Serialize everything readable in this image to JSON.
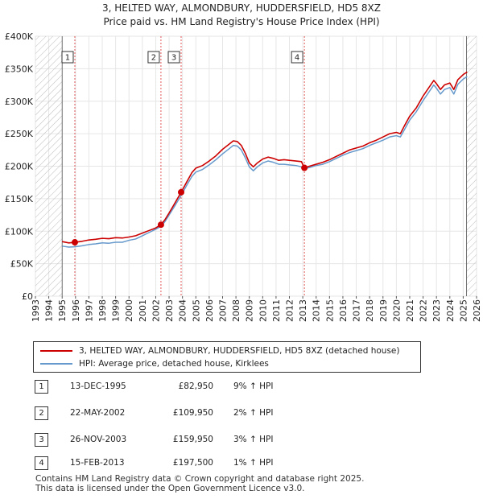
{
  "chart_data": {
    "type": "line",
    "title": "3, HELTED WAY, ALMONDBURY, HUDDERSFIELD, HD5 8XZ",
    "subtitle": "Price paid vs. HM Land Registry's House Price Index (HPI)",
    "xlabel": "",
    "ylabel": "",
    "xlim": [
      1993,
      2026
    ],
    "ylim": [
      0,
      400000
    ],
    "x_ticks": [
      1993,
      1994,
      1995,
      1996,
      1997,
      1998,
      1999,
      2000,
      2001,
      2002,
      2003,
      2004,
      2005,
      2006,
      2007,
      2008,
      2009,
      2010,
      2011,
      2012,
      2013,
      2014,
      2015,
      2016,
      2017,
      2018,
      2019,
      2020,
      2021,
      2022,
      2023,
      2024,
      2025,
      2026
    ],
    "y_ticks": [
      0,
      50000,
      100000,
      150000,
      200000,
      250000,
      300000,
      350000,
      400000
    ],
    "y_tick_labels": [
      "£0",
      "£50K",
      "£100K",
      "£150K",
      "£200K",
      "£250K",
      "£300K",
      "£350K",
      "£400K"
    ],
    "hatched_regions": [
      [
        1993,
        1995.0
      ],
      [
        2025.25,
        2026
      ]
    ],
    "series": [
      {
        "name": "3, HELTED WAY, ALMONDBURY, HUDDERSFIELD, HD5 8XZ (detached house)",
        "color": "#cc0000",
        "points": [
          [
            1995.0,
            84000
          ],
          [
            1995.5,
            82000
          ],
          [
            1995.95,
            82950
          ],
          [
            1996.5,
            84500
          ],
          [
            1997.0,
            86500
          ],
          [
            1997.5,
            87500
          ],
          [
            1998.0,
            89000
          ],
          [
            1998.5,
            88500
          ],
          [
            1999.0,
            90000
          ],
          [
            1999.5,
            89500
          ],
          [
            2000.0,
            91000
          ],
          [
            2000.5,
            93000
          ],
          [
            2001.0,
            97000
          ],
          [
            2001.5,
            101000
          ],
          [
            2002.0,
            105000
          ],
          [
            2002.39,
            109950
          ],
          [
            2002.7,
            118000
          ],
          [
            2003.0,
            128000
          ],
          [
            2003.4,
            142000
          ],
          [
            2003.9,
            159950
          ],
          [
            2004.3,
            175000
          ],
          [
            2004.7,
            190000
          ],
          [
            2005.0,
            197000
          ],
          [
            2005.5,
            201000
          ],
          [
            2006.0,
            208000
          ],
          [
            2006.5,
            216000
          ],
          [
            2007.0,
            226000
          ],
          [
            2007.5,
            234000
          ],
          [
            2007.8,
            239000
          ],
          [
            2008.1,
            238000
          ],
          [
            2008.4,
            232000
          ],
          [
            2008.7,
            220000
          ],
          [
            2009.0,
            205000
          ],
          [
            2009.3,
            199000
          ],
          [
            2009.6,
            205000
          ],
          [
            2010.0,
            211000
          ],
          [
            2010.4,
            214000
          ],
          [
            2010.8,
            212000
          ],
          [
            2011.2,
            209000
          ],
          [
            2011.6,
            210000
          ],
          [
            2012.0,
            209000
          ],
          [
            2012.5,
            208000
          ],
          [
            2012.9,
            207000
          ],
          [
            2013.12,
            197500
          ],
          [
            2013.5,
            200000
          ],
          [
            2014.0,
            203000
          ],
          [
            2014.5,
            206000
          ],
          [
            2015.0,
            210000
          ],
          [
            2015.5,
            215000
          ],
          [
            2016.0,
            220000
          ],
          [
            2016.5,
            225000
          ],
          [
            2017.0,
            228000
          ],
          [
            2017.5,
            231000
          ],
          [
            2018.0,
            236000
          ],
          [
            2018.5,
            240000
          ],
          [
            2019.0,
            245000
          ],
          [
            2019.5,
            250000
          ],
          [
            2020.0,
            252000
          ],
          [
            2020.3,
            250000
          ],
          [
            2020.6,
            262000
          ],
          [
            2021.0,
            277000
          ],
          [
            2021.5,
            290000
          ],
          [
            2022.0,
            308000
          ],
          [
            2022.5,
            323000
          ],
          [
            2022.8,
            332000
          ],
          [
            2023.0,
            327000
          ],
          [
            2023.3,
            318000
          ],
          [
            2023.6,
            325000
          ],
          [
            2024.0,
            328000
          ],
          [
            2024.3,
            318000
          ],
          [
            2024.6,
            333000
          ],
          [
            2025.0,
            341000
          ],
          [
            2025.3,
            345000
          ]
        ]
      },
      {
        "name": "HPI: Average price, detached house, Kirklees",
        "color": "#6699cc",
        "points": [
          [
            1995.0,
            77000
          ],
          [
            1995.5,
            75500
          ],
          [
            1995.95,
            76000
          ],
          [
            1996.5,
            77500
          ],
          [
            1997.0,
            79500
          ],
          [
            1997.5,
            80500
          ],
          [
            1998.0,
            82000
          ],
          [
            1998.5,
            81500
          ],
          [
            1999.0,
            83000
          ],
          [
            1999.5,
            83000
          ],
          [
            2000.0,
            86000
          ],
          [
            2000.5,
            88000
          ],
          [
            2001.0,
            93000
          ],
          [
            2001.5,
            98000
          ],
          [
            2002.0,
            103000
          ],
          [
            2002.39,
            107500
          ],
          [
            2002.7,
            115000
          ],
          [
            2003.0,
            125000
          ],
          [
            2003.4,
            138000
          ],
          [
            2003.9,
            155000
          ],
          [
            2004.3,
            170000
          ],
          [
            2004.7,
            184000
          ],
          [
            2005.0,
            191000
          ],
          [
            2005.5,
            195000
          ],
          [
            2006.0,
            202000
          ],
          [
            2006.5,
            210000
          ],
          [
            2007.0,
            219000
          ],
          [
            2007.5,
            227000
          ],
          [
            2007.8,
            232000
          ],
          [
            2008.1,
            231000
          ],
          [
            2008.4,
            225000
          ],
          [
            2008.7,
            213000
          ],
          [
            2009.0,
            199000
          ],
          [
            2009.3,
            193000
          ],
          [
            2009.6,
            199000
          ],
          [
            2010.0,
            205000
          ],
          [
            2010.4,
            208000
          ],
          [
            2010.8,
            206000
          ],
          [
            2011.2,
            203000
          ],
          [
            2011.6,
            203000
          ],
          [
            2012.0,
            202000
          ],
          [
            2012.5,
            201000
          ],
          [
            2012.9,
            199000
          ],
          [
            2013.12,
            196000
          ],
          [
            2013.5,
            198000
          ],
          [
            2014.0,
            201000
          ],
          [
            2014.5,
            203000
          ],
          [
            2015.0,
            207000
          ],
          [
            2015.5,
            212000
          ],
          [
            2016.0,
            217000
          ],
          [
            2016.5,
            221000
          ],
          [
            2017.0,
            224000
          ],
          [
            2017.5,
            227000
          ],
          [
            2018.0,
            232000
          ],
          [
            2018.5,
            236000
          ],
          [
            2019.0,
            240000
          ],
          [
            2019.5,
            245000
          ],
          [
            2020.0,
            247000
          ],
          [
            2020.3,
            245000
          ],
          [
            2020.6,
            256000
          ],
          [
            2021.0,
            271000
          ],
          [
            2021.5,
            284000
          ],
          [
            2022.0,
            301000
          ],
          [
            2022.5,
            316000
          ],
          [
            2022.8,
            325000
          ],
          [
            2023.0,
            320000
          ],
          [
            2023.3,
            311000
          ],
          [
            2023.6,
            318000
          ],
          [
            2024.0,
            321000
          ],
          [
            2024.3,
            311000
          ],
          [
            2024.6,
            326000
          ],
          [
            2025.0,
            334000
          ],
          [
            2025.3,
            338000
          ]
        ]
      }
    ],
    "sales": [
      {
        "label": "1",
        "date": "13-DEC-1995",
        "x": 1995.95,
        "price": 82950,
        "price_text": "£82,950",
        "hpi": "9% ↑ HPI"
      },
      {
        "label": "2",
        "date": "22-MAY-2002",
        "x": 2002.39,
        "price": 109950,
        "price_text": "£109,950",
        "hpi": "2% ↑ HPI"
      },
      {
        "label": "3",
        "date": "26-NOV-2003",
        "x": 2003.9,
        "price": 159950,
        "price_text": "£159,950",
        "hpi": "3% ↑ HPI"
      },
      {
        "label": "4",
        "date": "15-FEB-2013",
        "x": 2013.12,
        "price": 197500,
        "price_text": "£197,500",
        "hpi": "1% ↑ HPI"
      }
    ],
    "marker_color": "#cc0000"
  },
  "legend": {
    "series1": "3, HELTED WAY, ALMONDBURY, HUDDERSFIELD, HD5 8XZ (detached house)",
    "series2": "HPI: Average price, detached house, Kirklees"
  },
  "footer": {
    "line1": "Contains HM Land Registry data © Crown copyright and database right 2025.",
    "line2": "This data is licensed under the Open Government Licence v3.0."
  }
}
